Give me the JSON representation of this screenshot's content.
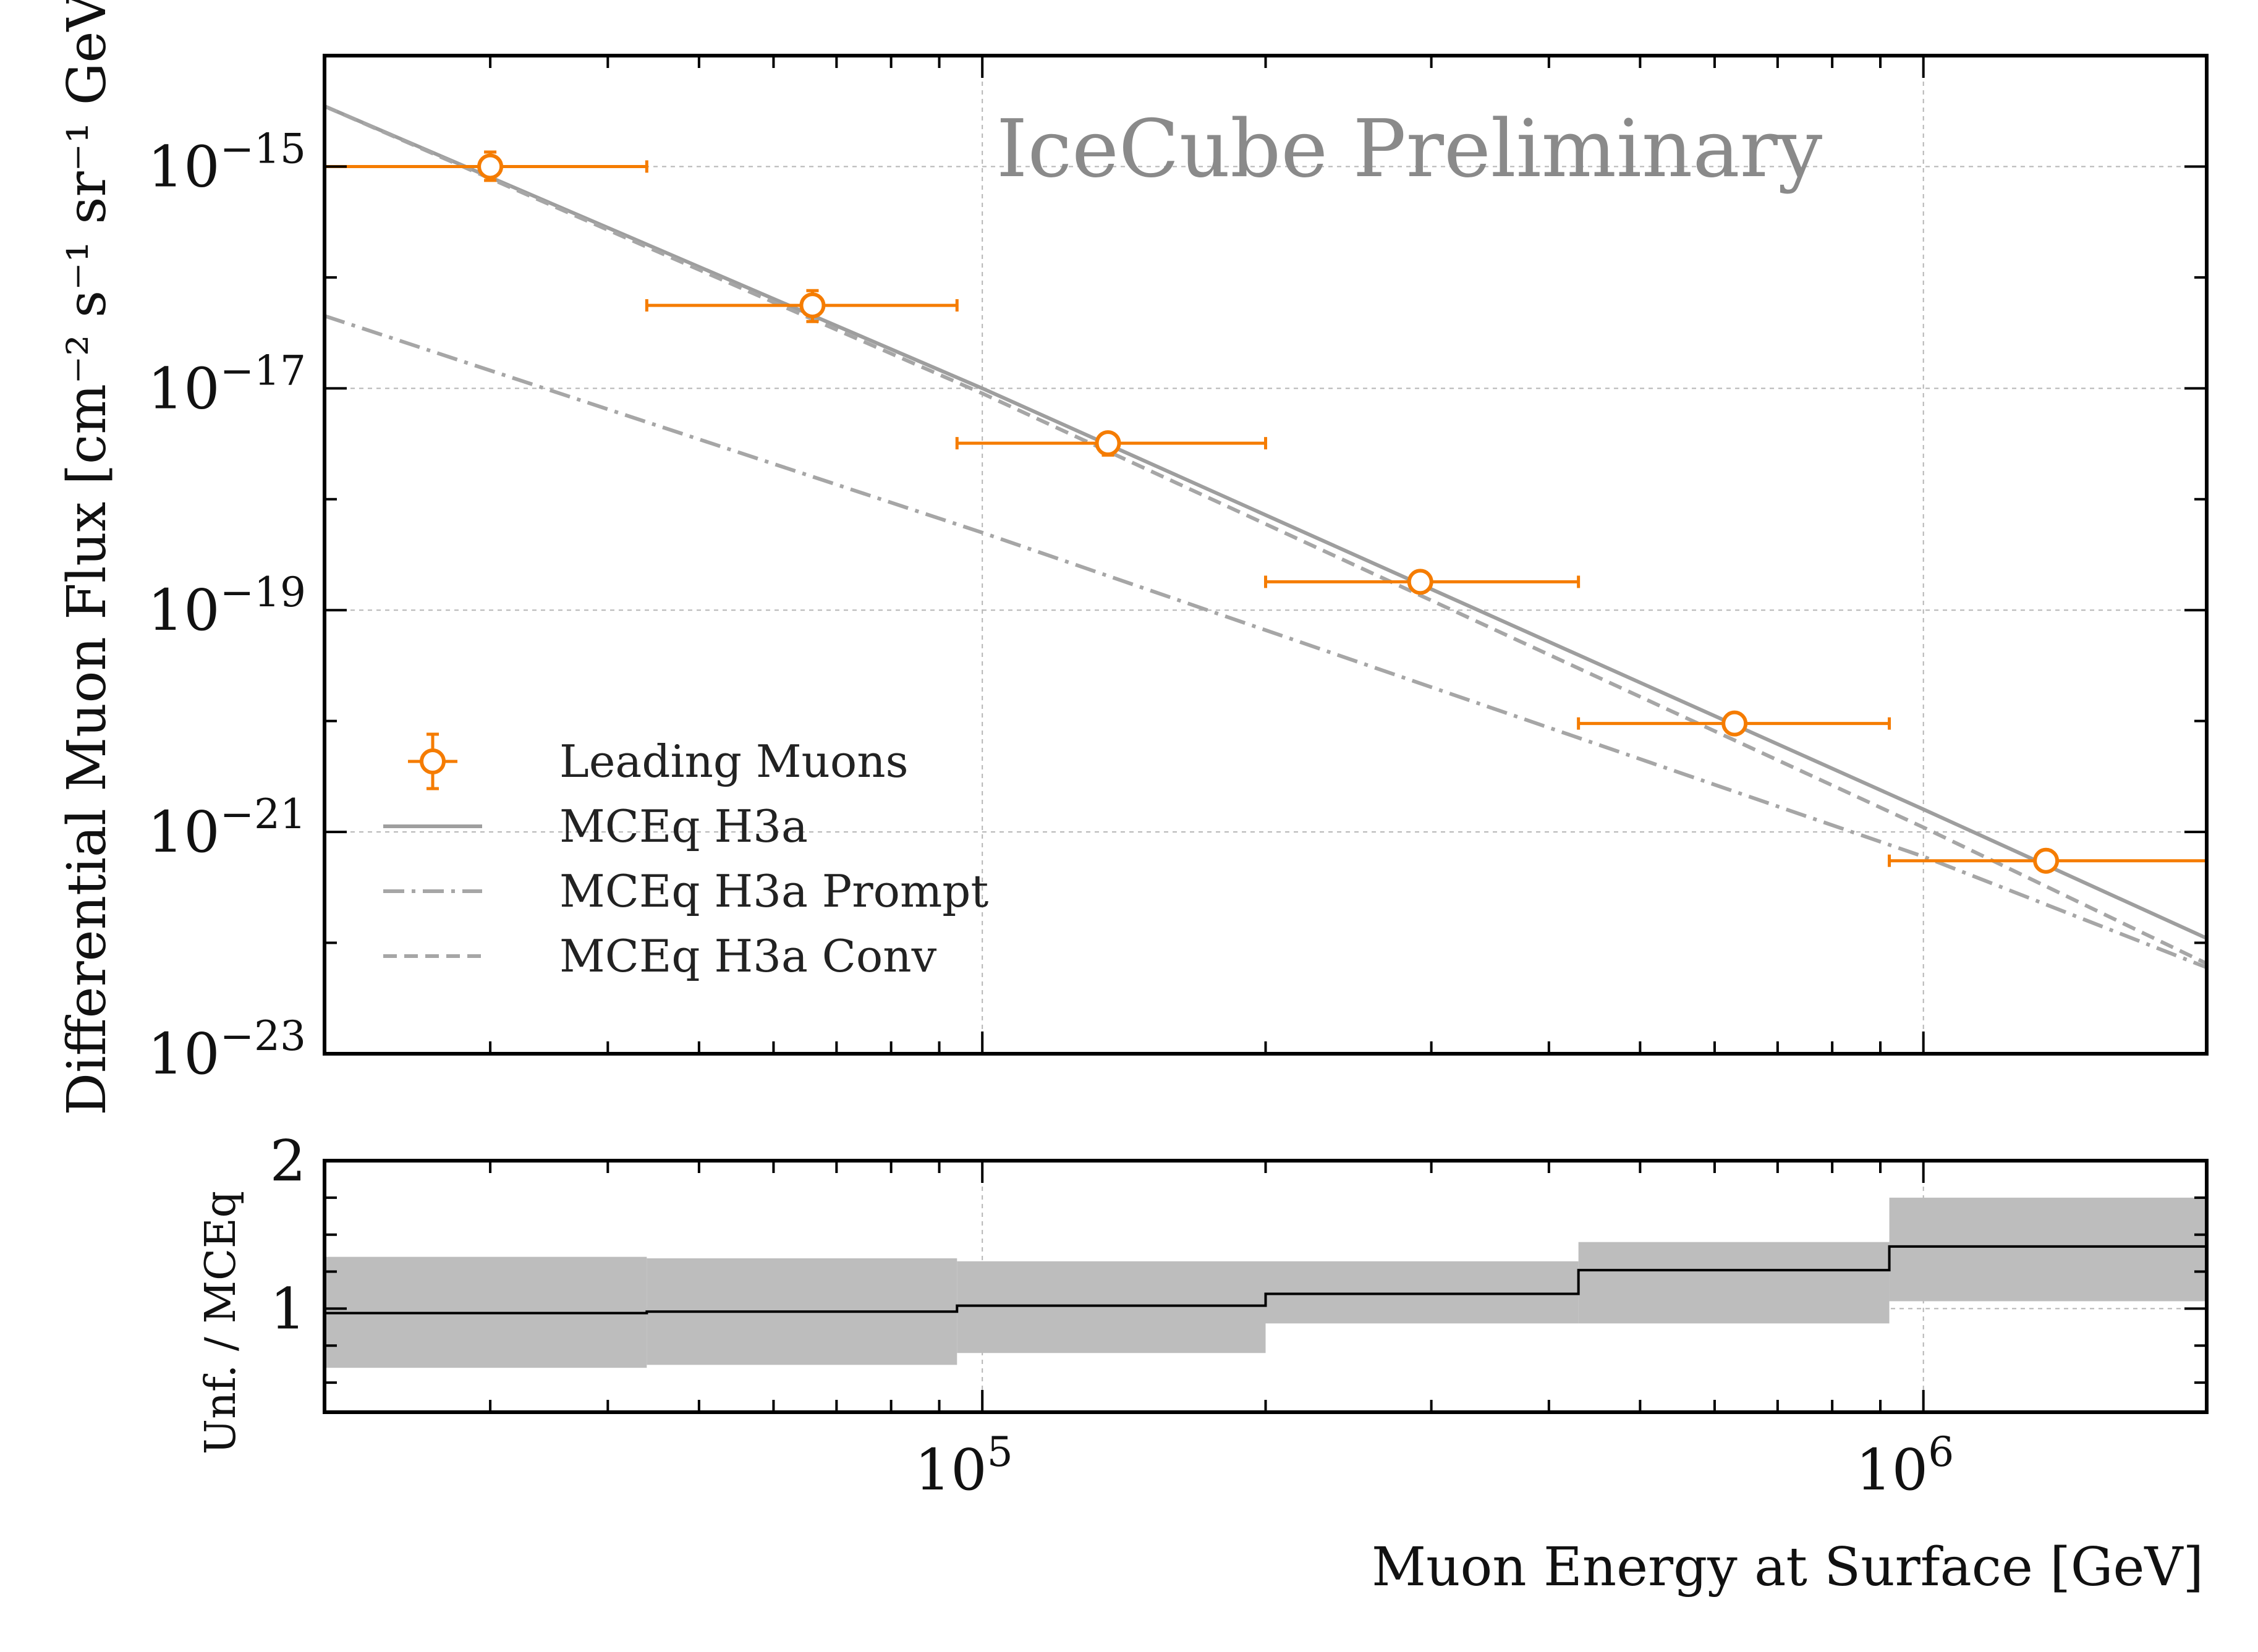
{
  "chart_data": {
    "type": "scatter",
    "watermark": "IceCube Preliminary",
    "xlabel": "Muon Energy at Surface [GeV]",
    "ylabel": "Differential Muon Flux [cm⁻² s⁻¹ sr⁻¹ GeV⁻¹]",
    "ratio_ylabel": "Unf. / MCEq",
    "xscale": "log",
    "yscale": "log",
    "xlim": [
      20000,
      2000000
    ],
    "ylim": [
      1e-23,
      1e-14
    ],
    "ratio_ylim": [
      0.3,
      2.0
    ],
    "x_tick_labels": [
      {
        "value": 100000,
        "base": "10",
        "exp": "5"
      },
      {
        "value": 1000000,
        "base": "10",
        "exp": "6"
      }
    ],
    "y_tick_labels": [
      {
        "value": 1e-15,
        "base": "10",
        "exp": "−15"
      },
      {
        "value": 1e-17,
        "base": "10",
        "exp": "−17"
      },
      {
        "value": 1e-19,
        "base": "10",
        "exp": "−19"
      },
      {
        "value": 1e-21,
        "base": "10",
        "exp": "−21"
      },
      {
        "value": 1e-23,
        "base": "10",
        "exp": "−23"
      }
    ],
    "ratio_tick_labels": [
      {
        "value": 2,
        "label": "2"
      },
      {
        "value": 1,
        "label": "1"
      }
    ],
    "grid": true,
    "legend_position": "lower-left",
    "legend": [
      {
        "label": "Leading Muons",
        "style": "marker-errorbar",
        "color": "#f57c00"
      },
      {
        "label": "MCEq H3a",
        "style": "solid",
        "color": "#9e9e9e"
      },
      {
        "label": "MCEq H3a Prompt",
        "style": "dashdot",
        "color": "#a6a6a6"
      },
      {
        "label": "MCEq H3a Conv",
        "style": "dashed",
        "color": "#a6a6a6"
      }
    ],
    "data_points": {
      "name": "Leading Muons",
      "color": "#f57c00",
      "points": [
        {
          "x": 30000,
          "x_low": 20000,
          "x_high": 44000,
          "y": 1e-15,
          "y_err_low": 2.5e-16,
          "y_err_high": 3.5e-16
        },
        {
          "x": 66000,
          "x_low": 44000,
          "x_high": 94000,
          "y": 5.6e-17,
          "y_err_low": 1.6e-17,
          "y_err_high": 2e-17
        },
        {
          "x": 136000,
          "x_low": 94000,
          "x_high": 200000,
          "y": 3.2e-18,
          "y_err_low": 7e-19,
          "y_err_high": 6e-19
        },
        {
          "x": 292000,
          "x_low": 200000,
          "x_high": 430000,
          "y": 1.8e-19,
          "y_err_low": 1.5e-20,
          "y_err_high": 1.5e-20
        },
        {
          "x": 630000,
          "x_low": 430000,
          "x_high": 920000,
          "y": 9.5e-21,
          "y_err_low": 8e-22,
          "y_err_high": 8e-22
        },
        {
          "x": 1350000,
          "x_low": 920000,
          "x_high": 2000000,
          "y": 5.5e-22,
          "y_err_low": 4e-23,
          "y_err_high": 4e-23
        }
      ]
    },
    "model_curves": [
      {
        "name": "MCEq H3a",
        "style": "solid",
        "color": "#9e9e9e",
        "x": [
          20000,
          100000,
          1000000,
          2000000
        ],
        "y": [
          3.5e-15,
          1e-17,
          1.6e-21,
          1.1e-22
        ]
      },
      {
        "name": "MCEq H3a Prompt",
        "style": "dashdot",
        "color": "#a6a6a6",
        "x": [
          20000,
          100000,
          1000000,
          2000000
        ],
        "y": [
          4.5e-17,
          5e-19,
          6e-22,
          6e-23
        ]
      },
      {
        "name": "MCEq H3a Conv",
        "style": "dashed",
        "color": "#a6a6a6",
        "x": [
          20000,
          100000,
          1000000,
          2000000
        ],
        "y": [
          3.5e-15,
          9e-18,
          1.1e-21,
          6.5e-23
        ]
      }
    ],
    "ratio": {
      "bin_edges": [
        20000,
        44000,
        94000,
        200000,
        430000,
        920000,
        2000000
      ],
      "values": [
        0.97,
        0.98,
        1.02,
        1.1,
        1.26,
        1.42
      ],
      "band_low": [
        0.6,
        0.62,
        0.7,
        0.9,
        0.9,
        1.05
      ],
      "band_high": [
        1.35,
        1.34,
        1.32,
        1.32,
        1.45,
        1.75
      ],
      "band_color": "#bdbdbd",
      "line_color": "#000000"
    }
  }
}
